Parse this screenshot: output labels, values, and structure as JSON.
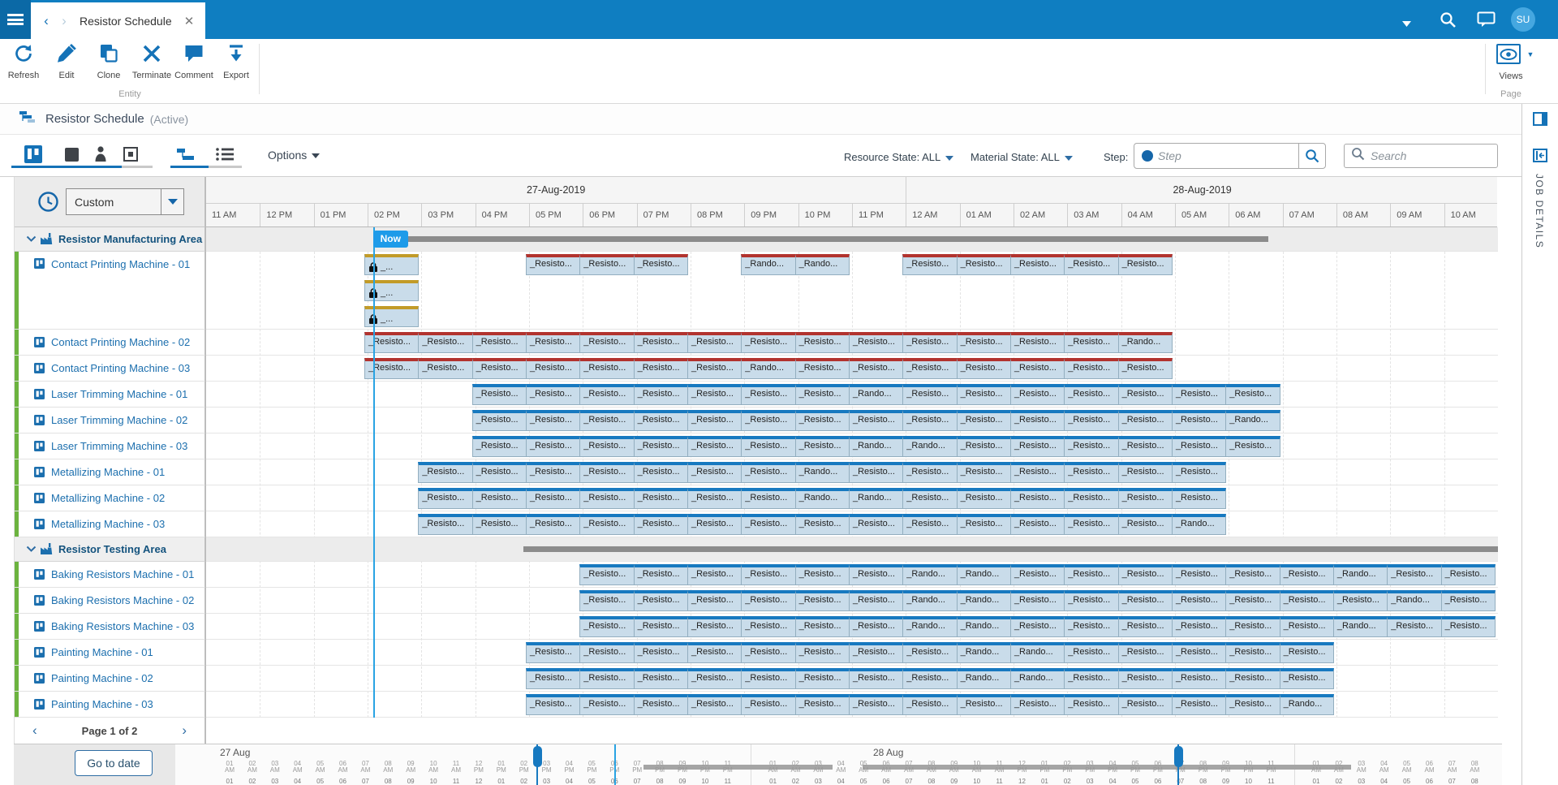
{
  "topbar": {
    "tab_title": "Resistor Schedule",
    "avatar_initials": "SU"
  },
  "ribbon": {
    "buttons": [
      "Refresh",
      "Edit",
      "Clone",
      "Terminate",
      "Comment",
      "Export"
    ],
    "group_label": "Entity",
    "views_label": "Views",
    "page_label": "Page"
  },
  "title": {
    "name": "Resistor Schedule",
    "status": "(Active)"
  },
  "toolbar": {
    "options_label": "Options",
    "resource_state": "Resource State: ALL",
    "material_state": "Material State: ALL",
    "step_label": "Step:",
    "step_placeholder": "Step",
    "search_placeholder": "Search"
  },
  "side_panel": {
    "label": "JOB DETAILS"
  },
  "left_panel": {
    "range_selector": "Custom",
    "page_indicator": "Page 1 of 2",
    "go_to_date": "Go to date"
  },
  "colors": {
    "topbar_blue": "#0f7ec1",
    "accent_blue": "#1472b7",
    "bar_body": "#c9dcea",
    "bar_top_red": "#b2332e",
    "bar_top_blue": "#1779c0",
    "bar_top_locked": "#c29b28",
    "now_blue": "#1e9be9",
    "green_edge": "#6cb33f"
  },
  "gantt": {
    "now_label": "Now",
    "labels": {
      "task": "_Resisto...",
      "rando": "_Rando...",
      "locked": "_..."
    },
    "days": [
      {
        "label": "27-Aug-2019",
        "span": 13
      },
      {
        "label": "28-Aug-2019",
        "span": 11
      }
    ],
    "hours": [
      "11 AM",
      "12 PM",
      "01 PM",
      "02 PM",
      "03 PM",
      "04 PM",
      "05 PM",
      "06 PM",
      "07 PM",
      "08 PM",
      "09 PM",
      "10 PM",
      "11 PM",
      "12 AM",
      "01 AM",
      "02 AM",
      "03 AM",
      "04 AM",
      "05 AM",
      "06 AM",
      "07 AM",
      "08 AM",
      "09 AM",
      "10 AM"
    ],
    "rows": [
      {
        "type": "group",
        "label": "Resistor Manufacturing Area",
        "bars": [
          {
            "start": 3.1,
            "end": 19.73
          }
        ]
      },
      {
        "type": "machine",
        "label": "Contact Printing Machine - 01",
        "top": "red",
        "lanes": [
          {
            "bars": [
              {
                "col": 3,
                "t": "locked"
              },
              {
                "col": 6,
                "t": "task"
              },
              {
                "col": 7,
                "t": "task"
              },
              {
                "col": 8,
                "t": "task"
              },
              {
                "col": 10,
                "t": "rando"
              },
              {
                "col": 11,
                "t": "rando"
              },
              {
                "col": 13,
                "t": "task"
              },
              {
                "col": 14,
                "t": "task"
              },
              {
                "col": 15,
                "t": "task"
              },
              {
                "col": 16,
                "t": "task"
              },
              {
                "col": 17,
                "t": "task"
              }
            ]
          },
          {
            "bars": [
              {
                "col": 3,
                "t": "locked"
              }
            ]
          },
          {
            "bars": [
              {
                "col": 3,
                "t": "locked"
              }
            ]
          }
        ]
      },
      {
        "type": "machine",
        "label": "Contact Printing Machine - 02",
        "top": "red",
        "run": {
          "start": 3,
          "count": 15,
          "rando": [
            14
          ]
        }
      },
      {
        "type": "machine",
        "label": "Contact Printing Machine - 03",
        "top": "red",
        "run": {
          "start": 3,
          "count": 15,
          "rando": [
            7
          ]
        }
      },
      {
        "type": "machine",
        "label": "Laser Trimming Machine - 01",
        "top": "blue",
        "run": {
          "start": 5,
          "count": 15,
          "rando": [
            7
          ]
        }
      },
      {
        "type": "machine",
        "label": "Laser Trimming Machine - 02",
        "top": "blue",
        "run": {
          "start": 5,
          "count": 15,
          "rando": [
            14
          ]
        }
      },
      {
        "type": "machine",
        "label": "Laser Trimming Machine - 03",
        "top": "blue",
        "run": {
          "start": 5,
          "count": 15,
          "rando": [
            7,
            8
          ]
        }
      },
      {
        "type": "machine",
        "label": "Metallizing Machine - 01",
        "top": "blue",
        "run": {
          "start": 4,
          "count": 15,
          "rando": [
            7
          ]
        }
      },
      {
        "type": "machine",
        "label": "Metallizing Machine - 02",
        "top": "blue",
        "run": {
          "start": 4,
          "count": 15,
          "rando": [
            7,
            8
          ]
        }
      },
      {
        "type": "machine",
        "label": "Metallizing Machine - 03",
        "top": "blue",
        "run": {
          "start": 4,
          "count": 15,
          "rando": [
            14
          ]
        }
      },
      {
        "type": "group",
        "label": "Resistor Testing Area",
        "bars": [
          {
            "start": 5.9,
            "end": 24
          }
        ]
      },
      {
        "type": "machine",
        "label": "Baking Resistors Machine - 01",
        "top": "blue",
        "run": {
          "start": 7,
          "count": 17,
          "rando": [
            6,
            7,
            14
          ]
        }
      },
      {
        "type": "machine",
        "label": "Baking Resistors Machine - 02",
        "top": "blue",
        "run": {
          "start": 7,
          "count": 17,
          "rando": [
            6,
            7,
            15
          ]
        }
      },
      {
        "type": "machine",
        "label": "Baking Resistors Machine - 03",
        "top": "blue",
        "run": {
          "start": 7,
          "count": 17,
          "rando": [
            6,
            7,
            14
          ]
        }
      },
      {
        "type": "machine",
        "label": "Painting Machine - 01",
        "top": "blue",
        "run": {
          "start": 6,
          "count": 15,
          "rando": [
            8,
            9
          ]
        }
      },
      {
        "type": "machine",
        "label": "Painting Machine - 02",
        "top": "blue",
        "run": {
          "start": 6,
          "count": 15,
          "rando": [
            8,
            9
          ]
        }
      },
      {
        "type": "machine",
        "label": "Painting Machine - 03",
        "top": "blue",
        "run": {
          "start": 6,
          "count": 15,
          "rando": [
            14
          ]
        }
      }
    ]
  },
  "navigator": {
    "day_labels": [
      "27 Aug",
      "28 Aug"
    ],
    "tick_hours": [
      "01 AM",
      "02 AM",
      "03 AM",
      "04 AM",
      "05 AM",
      "06 AM",
      "07 AM",
      "08 AM",
      "09 AM",
      "10 AM",
      "11 AM",
      "12 PM",
      "01 PM",
      "02 PM",
      "03 PM",
      "04 PM",
      "05 PM",
      "06 PM",
      "07 PM",
      "08 PM",
      "09 PM",
      "10 PM",
      "11 PM"
    ],
    "partial_hours": [
      "01 AM",
      "02 AM",
      "03 AM",
      "04 AM",
      "05 AM",
      "06 AM",
      "07 AM",
      "08 AM"
    ]
  }
}
